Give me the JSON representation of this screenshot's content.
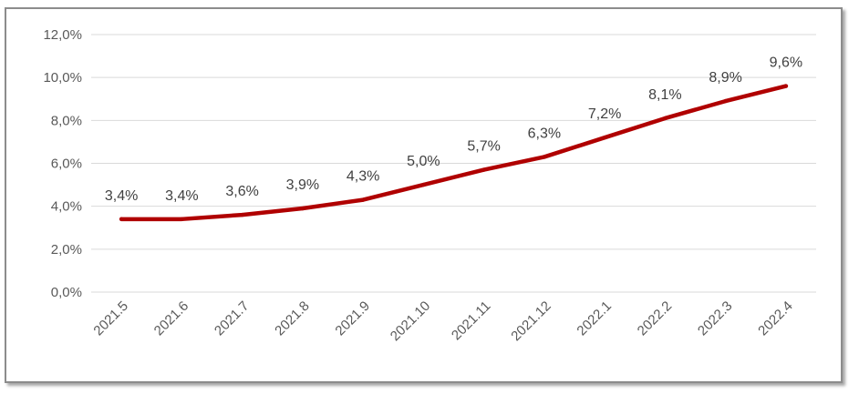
{
  "colors": {
    "line": "#b00000",
    "grid": "#d9d9d9",
    "frame": "#8c8c8c"
  },
  "chart_data": {
    "type": "line",
    "categories": [
      "2021.5",
      "2021.6",
      "2021.7",
      "2021.8",
      "2021.9",
      "2021.10",
      "2021.11",
      "2021.12",
      "2022.1",
      "2022.2",
      "2022.3",
      "2022.4"
    ],
    "series": [
      {
        "values": [
          3.4,
          3.4,
          3.6,
          3.9,
          4.3,
          5.0,
          5.7,
          6.3,
          7.2,
          8.1,
          8.9,
          9.6
        ],
        "labels": [
          "3,4%",
          "3,4%",
          "3,6%",
          "3,9%",
          "4,3%",
          "5,0%",
          "5,7%",
          "6,3%",
          "7,2%",
          "8,1%",
          "8,9%",
          "9,6%"
        ]
      }
    ],
    "yticks": [
      "0,0%",
      "2,0%",
      "4,0%",
      "6,0%",
      "8,0%",
      "10,0%",
      "12,0%"
    ],
    "ylim": [
      0,
      12
    ],
    "grid": true,
    "legend": "none",
    "title": "",
    "xlabel": "",
    "ylabel": ""
  }
}
